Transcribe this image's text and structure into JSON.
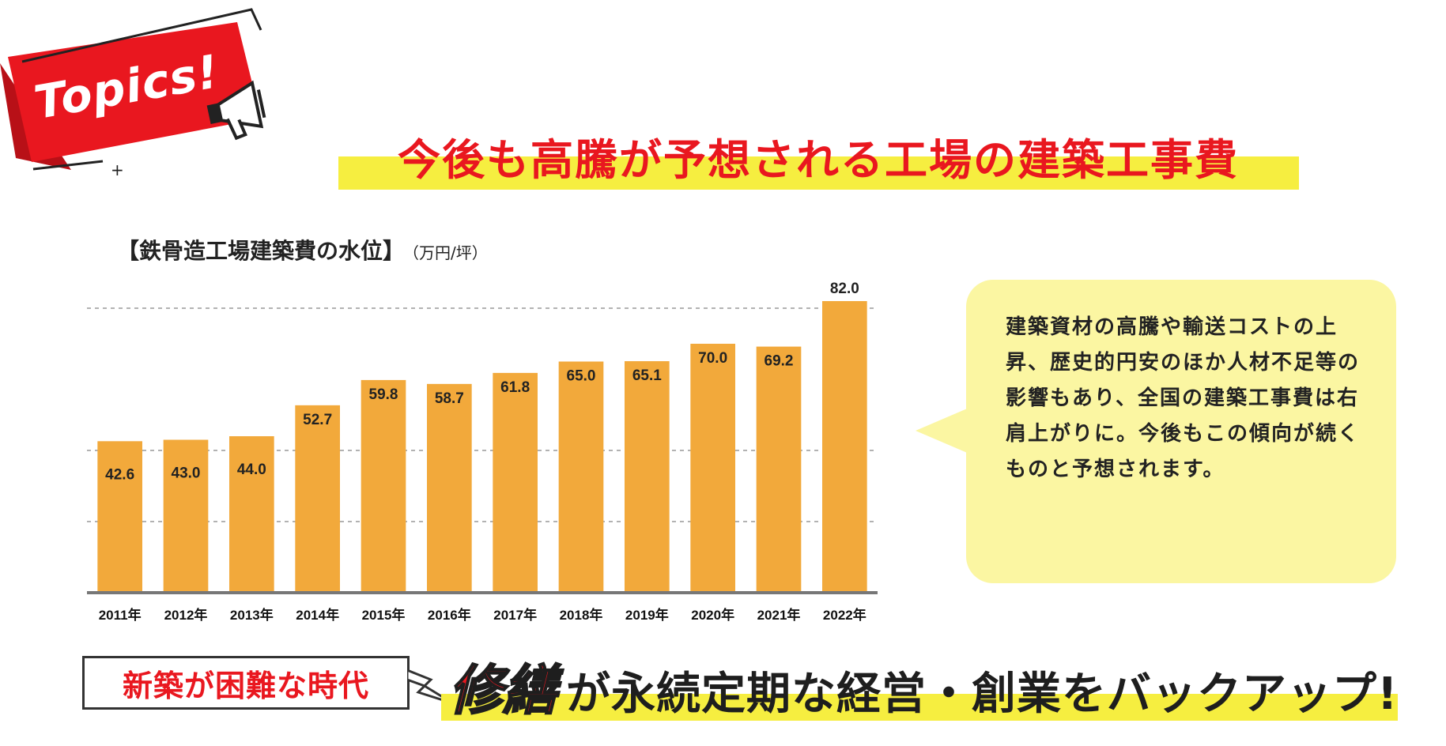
{
  "badge": {
    "label": "Topics!"
  },
  "headline": "今後も高騰が予想される工場の建築工事費",
  "chart_title": "【鉄骨造工場建築費の水位】",
  "chart_unit": "（万円/坪）",
  "chart_data": {
    "type": "bar",
    "title": "【鉄骨造工場建築費の水位】",
    "ylabel": "（万円/坪）",
    "xlabel": "",
    "categories": [
      "2011年",
      "2012年",
      "2013年",
      "2014年",
      "2015年",
      "2016年",
      "2017年",
      "2018年",
      "2019年",
      "2020年",
      "2021年",
      "2022年"
    ],
    "values": [
      42.6,
      43.0,
      44.0,
      52.7,
      59.8,
      58.7,
      61.8,
      65.0,
      65.1,
      70.0,
      69.2,
      82.0
    ],
    "value_labels": [
      "42.6",
      "43.0",
      "44.0",
      "52.7",
      "59.8",
      "58.7",
      "61.8",
      "65.0",
      "65.1",
      "70.0",
      "69.2",
      "82.0"
    ],
    "ylim": [
      0,
      100
    ],
    "gridlines": [
      20,
      40,
      80
    ],
    "bar_color": "#f2a93b"
  },
  "bubble_text": "建築資材の高騰や輸送コストの上昇、歴史的円安のほか人材不足等の影響もあり、全国の建築工事費は右肩上がりに。今後もこの傾向が続くものと予想されます。",
  "banner": {
    "left": "新築が困難な時代",
    "highlight": "修繕",
    "rest": "が永続定期な経営・創業をバックアップ!"
  },
  "colors": {
    "accent_red": "#e9171f",
    "highlight_yellow": "#f6ee40",
    "bubble": "#fbf6a2"
  }
}
